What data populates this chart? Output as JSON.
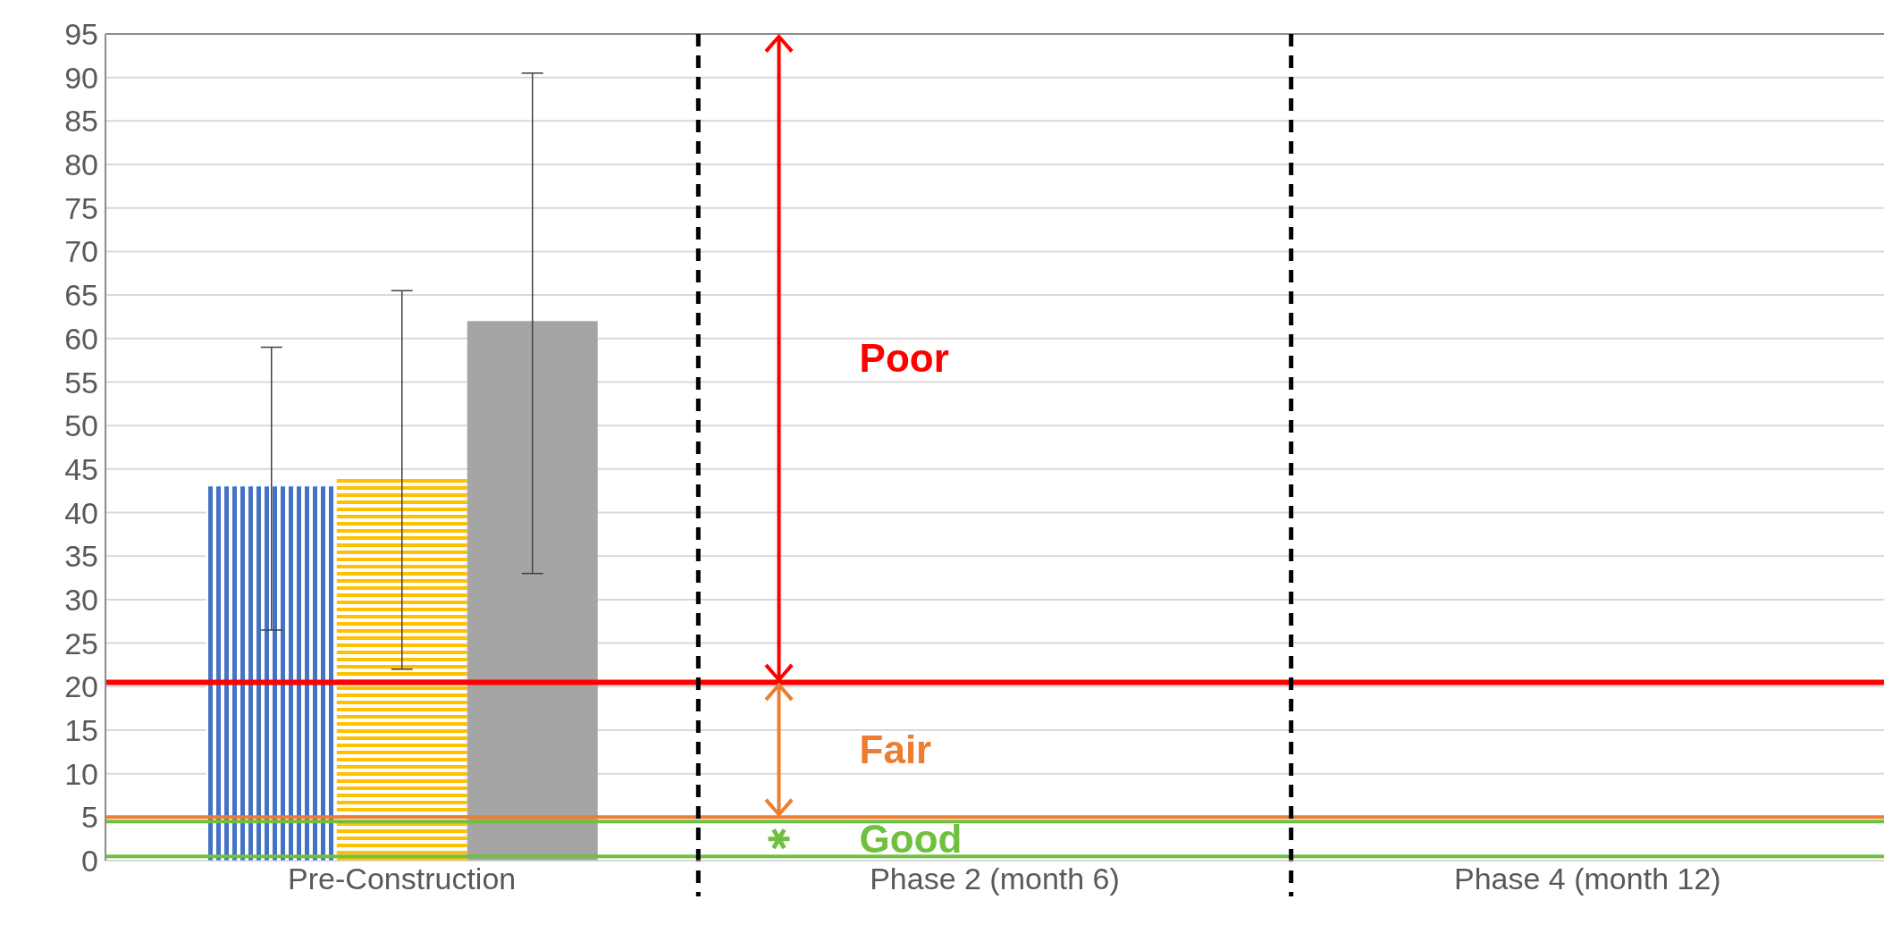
{
  "chart_data": {
    "type": "bar",
    "categories": [
      "Pre-Construction",
      "Phase 2 (month 6)",
      "Phase 4 (month 12)"
    ],
    "series": [
      {
        "color": "#4472c4",
        "values": [
          43,
          null,
          null
        ],
        "errors": [
          [
            26.5,
            59
          ],
          null,
          null
        ]
      },
      {
        "color": "#ffc000",
        "values": [
          44,
          null,
          null
        ],
        "errors": [
          [
            22,
            65.5
          ],
          null,
          null
        ]
      },
      {
        "color": "#a5a5a5",
        "values": [
          62,
          null,
          null
        ],
        "errors": [
          [
            33,
            90.5
          ],
          null,
          null
        ]
      }
    ],
    "ylim": [
      0,
      95
    ],
    "yticks": [
      0,
      5,
      10,
      15,
      20,
      25,
      30,
      35,
      40,
      45,
      50,
      55,
      60,
      65,
      70,
      75,
      80,
      85,
      90,
      95
    ],
    "grid": "y",
    "ref_lines": [
      {
        "axis": "y",
        "value": 20.5,
        "color": "#ff0000"
      },
      {
        "axis": "y",
        "value": 5,
        "color": "#ed7d31"
      },
      {
        "axis": "y",
        "value": 4.5,
        "color": "#70c040"
      },
      {
        "axis": "y",
        "value": 0.5,
        "color": "#70c040"
      }
    ],
    "annotations": [
      "Poor",
      "Fair",
      "Good"
    ]
  }
}
